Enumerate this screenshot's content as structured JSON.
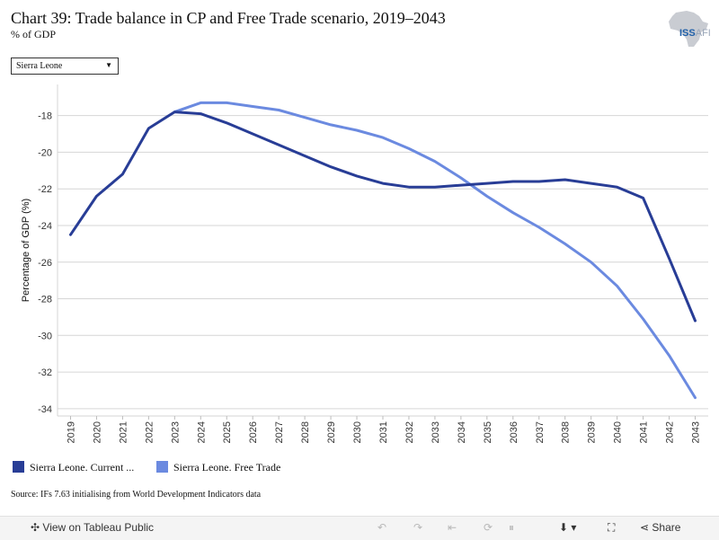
{
  "header": {
    "title": "Chart 39: Trade balance in CP and Free Trade scenario, 2019–2043",
    "subtitle": "% of GDP",
    "logo_text": "ISS",
    "logo_suffix": "AFI"
  },
  "dropdown": {
    "value": "Sierra Leone"
  },
  "source": "Source: IFs 7.63 initialising from World Development Indicators data",
  "toolbar": {
    "view_label": "View on Tableau Public",
    "share_label": "Share"
  },
  "chart_data": {
    "type": "line",
    "title": "",
    "xlabel": "",
    "ylabel": "Percentage of GDP (%)",
    "x": [
      2019,
      2020,
      2021,
      2022,
      2023,
      2024,
      2025,
      2026,
      2027,
      2028,
      2029,
      2030,
      2031,
      2032,
      2033,
      2034,
      2035,
      2036,
      2037,
      2038,
      2039,
      2040,
      2041,
      2042,
      2043
    ],
    "ylim": [
      -34.4,
      -16.3
    ],
    "yticks": [
      -18,
      -20,
      -22,
      -24,
      -26,
      -28,
      -30,
      -32,
      -34
    ],
    "grid": true,
    "legend_position": "bottom",
    "series": [
      {
        "name": "Sierra Leone. Current ...",
        "color": "#283d96",
        "values": [
          -24.5,
          -22.4,
          -21.2,
          -18.7,
          -17.8,
          -17.9,
          -18.4,
          -19.0,
          -19.6,
          -20.2,
          -20.8,
          -21.3,
          -21.7,
          -21.9,
          -21.9,
          -21.8,
          -21.7,
          -21.6,
          -21.6,
          -21.5,
          -21.7,
          -21.9,
          -22.5,
          -25.8,
          -29.2
        ]
      },
      {
        "name": "Sierra Leone. Free Trade",
        "color": "#6b8ae0",
        "values": [
          null,
          null,
          null,
          null,
          -17.8,
          -17.3,
          -17.3,
          -17.5,
          -17.7,
          -18.1,
          -18.5,
          -18.8,
          -19.2,
          -19.8,
          -20.5,
          -21.4,
          -22.4,
          -23.3,
          -24.1,
          -25.0,
          -26.0,
          -27.3,
          -29.1,
          -31.1,
          -33.4
        ]
      }
    ]
  }
}
